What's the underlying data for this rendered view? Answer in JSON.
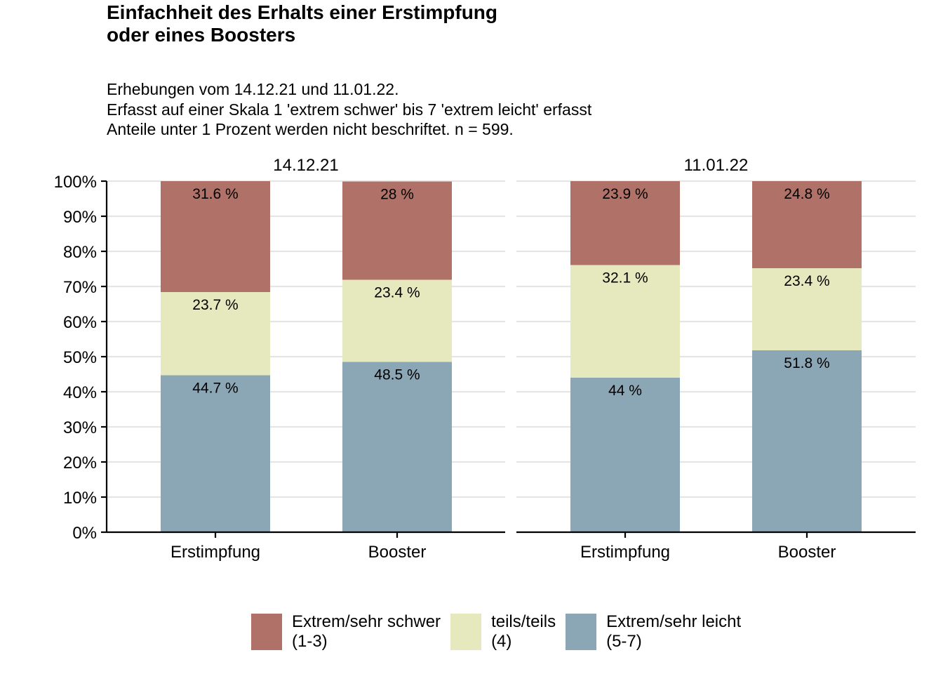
{
  "title": {
    "line1": "Einfachheit des Erhalts einer Erstimpfung",
    "line2": "oder eines Boosters"
  },
  "subtitle": {
    "line1": "Erhebungen vom 14.12.21 und 11.01.22.",
    "line2": "Erfasst auf einer Skala 1 'extrem schwer' bis 7 'extrem leicht' erfasst",
    "line3": "Anteile unter 1 Prozent werden nicht beschriftet. n = 599."
  },
  "colors": {
    "schwer": "#B07268",
    "teils": "#E6E9BE",
    "leicht": "#8BA6B4",
    "grid": "#E5E5E5",
    "axis": "#000000"
  },
  "legend": [
    {
      "key": "schwer",
      "line1": "Extrem/sehr schwer",
      "line2": "(1-3)"
    },
    {
      "key": "teils",
      "line1": "teils/teils",
      "line2": "(4)"
    },
    {
      "key": "leicht",
      "line1": "Extrem/sehr leicht",
      "line2": "(5-7)"
    }
  ],
  "chart_data": {
    "type": "bar",
    "stacked": true,
    "ylim": [
      0,
      100
    ],
    "yticks": [
      0,
      10,
      20,
      30,
      40,
      50,
      60,
      70,
      80,
      90,
      100
    ],
    "ytick_labels": [
      "0%",
      "10%",
      "20%",
      "30%",
      "40%",
      "50%",
      "60%",
      "70%",
      "80%",
      "90%",
      "100%"
    ],
    "categories": [
      "Erstimpfung",
      "Booster"
    ],
    "panels": [
      {
        "label": "14.12.21",
        "series": [
          {
            "name": "Extrem/sehr leicht (5-7)",
            "key": "leicht",
            "values": [
              44.7,
              48.5
            ],
            "labels": [
              "44.7 %",
              "48.5 %"
            ]
          },
          {
            "name": "teils/teils (4)",
            "key": "teils",
            "values": [
              23.7,
              23.4
            ],
            "labels": [
              "23.7 %",
              "23.4 %"
            ]
          },
          {
            "name": "Extrem/sehr schwer (1-3)",
            "key": "schwer",
            "values": [
              31.6,
              28.0
            ],
            "labels": [
              "31.6 %",
              "28 %"
            ]
          }
        ]
      },
      {
        "label": "11.01.22",
        "series": [
          {
            "name": "Extrem/sehr leicht (5-7)",
            "key": "leicht",
            "values": [
              44.0,
              51.8
            ],
            "labels": [
              "44 %",
              "51.8 %"
            ]
          },
          {
            "name": "teils/teils (4)",
            "key": "teils",
            "values": [
              32.1,
              23.4
            ],
            "labels": [
              "32.1 %",
              "23.4 %"
            ]
          },
          {
            "name": "Extrem/sehr schwer (1-3)",
            "key": "schwer",
            "values": [
              23.9,
              24.8
            ],
            "labels": [
              "23.9 %",
              "24.8 %"
            ]
          }
        ]
      }
    ]
  }
}
